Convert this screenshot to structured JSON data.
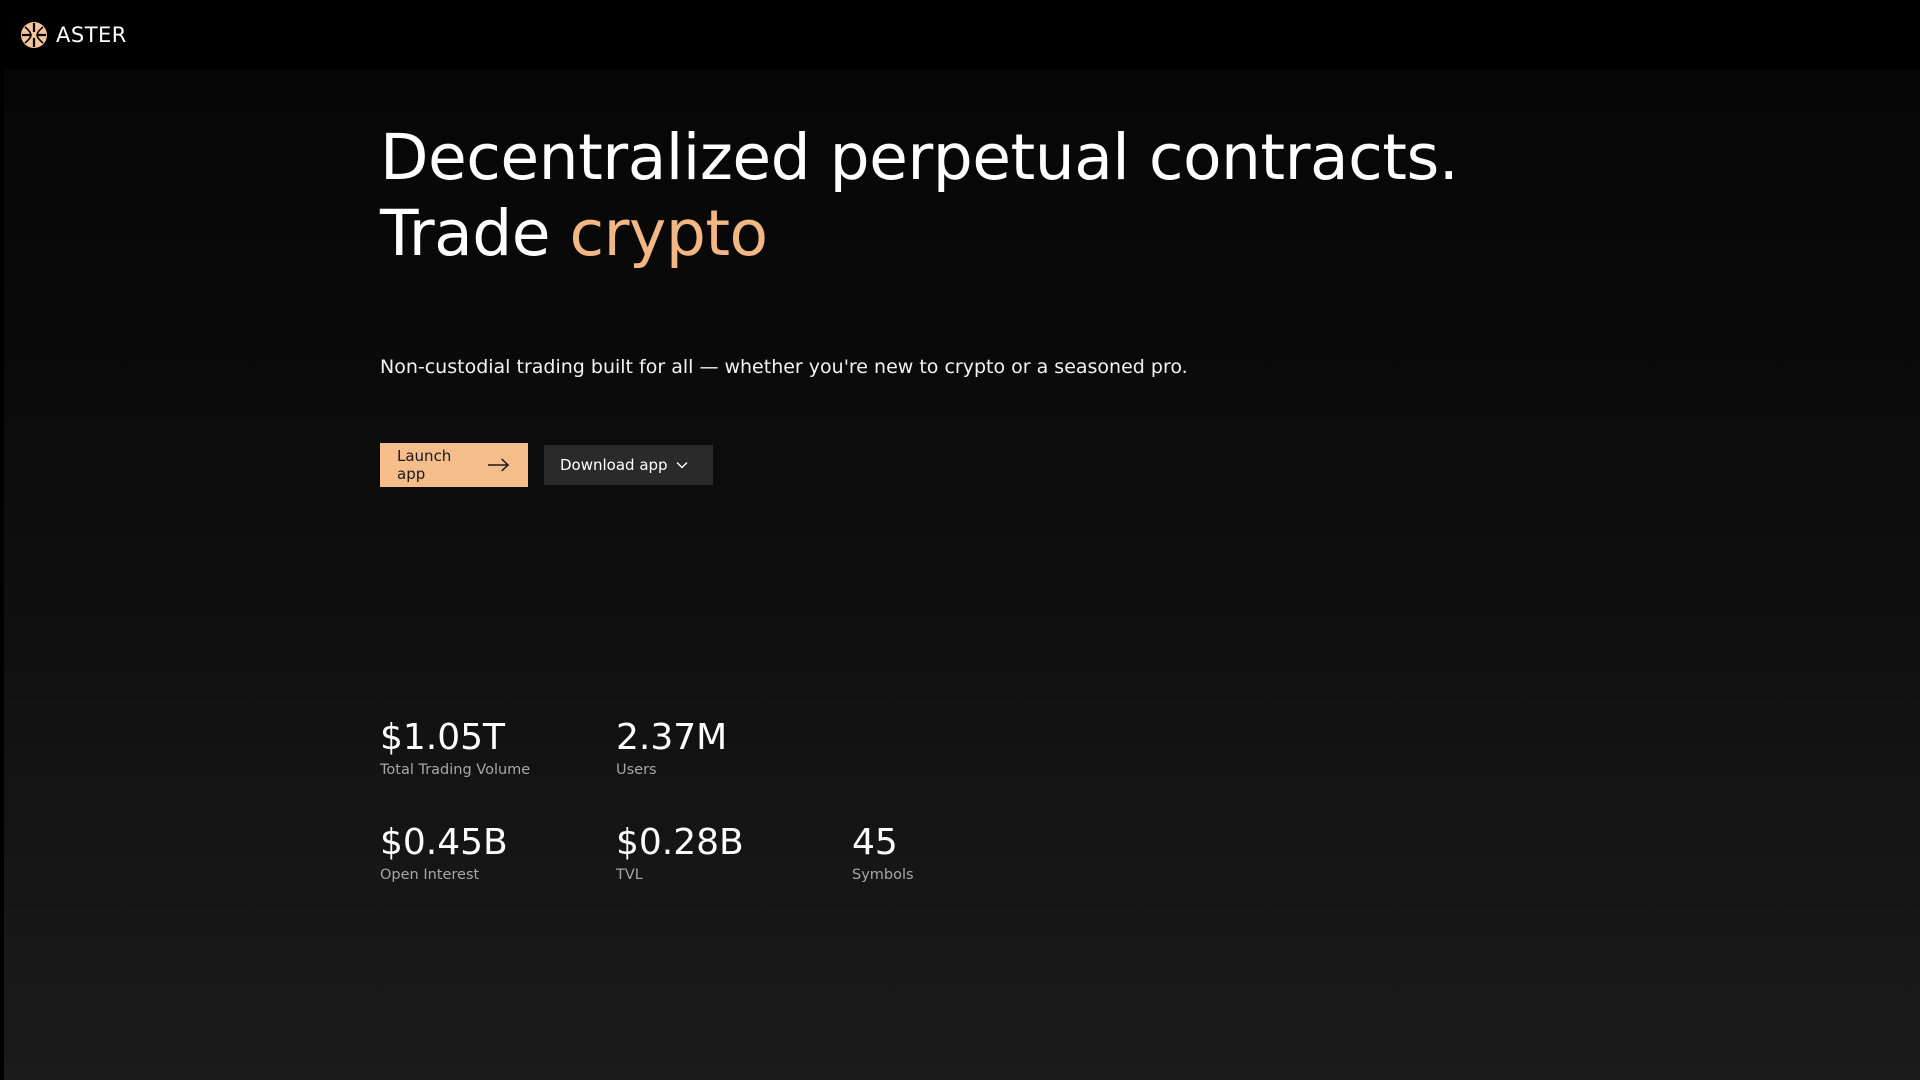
{
  "nav": {
    "brand": "ASTER",
    "logo_icon": "aster-logo-icon"
  },
  "hero": {
    "headline_line1": "Decentralized perpetual contracts.",
    "headline_line2_prefix": "Trade ",
    "headline_line2_accent": "crypto",
    "subtitle": "Non-custodial trading built for all — whether you're new to crypto or a seasoned pro."
  },
  "actions": {
    "launch_label": "Launch app",
    "launch_icon": "arrow-right-icon",
    "download_label": "Download app",
    "download_icon": "chevron-down-icon"
  },
  "stats": [
    {
      "value": "$1.05T",
      "label": "Total Trading Volume"
    },
    {
      "value": "2.37M",
      "label": "Users"
    },
    {
      "value": "$0.45B",
      "label": "Open Interest"
    },
    {
      "value": "$0.28B",
      "label": "TVL"
    },
    {
      "value": "45",
      "label": "Symbols"
    }
  ],
  "colors": {
    "accent": "#f3b784",
    "launch_button_bg": "#f4bd8a",
    "download_button_bg": "#2a2a2a",
    "background": "#000000",
    "muted_text": "#a7a7a7"
  }
}
